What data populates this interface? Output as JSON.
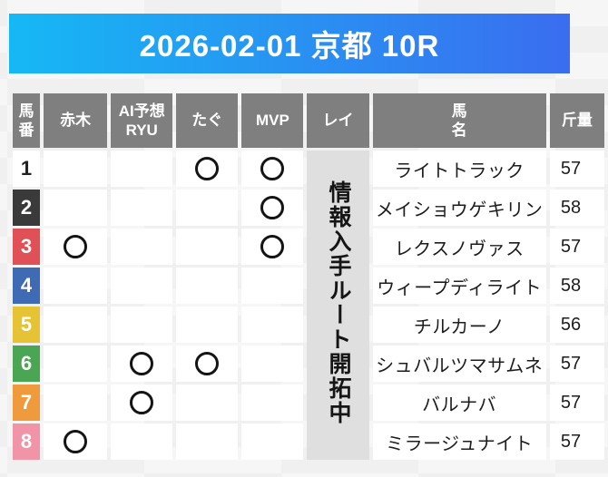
{
  "banner": {
    "title": "2026-02-01 京都 10R"
  },
  "colors": {
    "banner_left": "#16b8f4",
    "banner_right": "#3a6df0",
    "header_bg": "#7f7f7f",
    "rei_bg": "#dfdfdf"
  },
  "table": {
    "columns": {
      "num": "馬\n番",
      "akagi": "赤木",
      "ai": "AI予想\nRYU",
      "tagu": "たぐ",
      "mvp": "MVP",
      "rei": "レイ",
      "name": "馬\n名",
      "weight": "斤量"
    },
    "rei_notice": "情報入手ルート開拓中",
    "rows": [
      {
        "num": "1",
        "num_bg": "#ffffff",
        "num_text": "#222222",
        "marks": {
          "akagi": false,
          "ai": false,
          "tagu": true,
          "mvp": true
        },
        "name": "ライトトラック",
        "weight": "57"
      },
      {
        "num": "2",
        "num_bg": "#3a3a3a",
        "num_text": "#ffffff",
        "marks": {
          "akagi": false,
          "ai": false,
          "tagu": false,
          "mvp": true
        },
        "name": "メイショウゲキリン",
        "weight": "58"
      },
      {
        "num": "3",
        "num_bg": "#e05157",
        "num_text": "#ffffff",
        "marks": {
          "akagi": true,
          "ai": false,
          "tagu": false,
          "mvp": true
        },
        "name": "レクスノヴァス",
        "weight": "57"
      },
      {
        "num": "4",
        "num_bg": "#3e6bb4",
        "num_text": "#ffffff",
        "marks": {
          "akagi": false,
          "ai": false,
          "tagu": false,
          "mvp": false
        },
        "name": "ウィープディライト",
        "weight": "58"
      },
      {
        "num": "5",
        "num_bg": "#e6c334",
        "num_text": "#ffffff",
        "marks": {
          "akagi": false,
          "ai": false,
          "tagu": false,
          "mvp": false
        },
        "name": "チルカーノ",
        "weight": "56"
      },
      {
        "num": "6",
        "num_bg": "#4aa653",
        "num_text": "#ffffff",
        "marks": {
          "akagi": false,
          "ai": true,
          "tagu": true,
          "mvp": false
        },
        "name": "シュバルツマサムネ",
        "weight": "57"
      },
      {
        "num": "7",
        "num_bg": "#ef9a3d",
        "num_text": "#ffffff",
        "marks": {
          "akagi": false,
          "ai": true,
          "tagu": false,
          "mvp": false
        },
        "name": "バルナバ",
        "weight": "57"
      },
      {
        "num": "8",
        "num_bg": "#f294a8",
        "num_text": "#ffffff",
        "marks": {
          "akagi": true,
          "ai": false,
          "tagu": false,
          "mvp": false
        },
        "name": "ミラージュナイト",
        "weight": "57"
      }
    ]
  }
}
